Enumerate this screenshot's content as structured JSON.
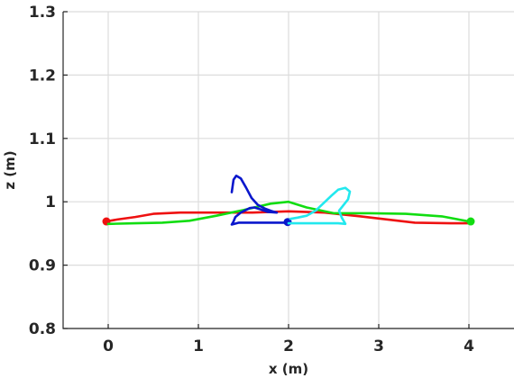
{
  "chart_data": {
    "type": "line",
    "title": "",
    "xlabel": "x (m)",
    "ylabel": "z (m)",
    "xlim": [
      -0.5,
      4.5
    ],
    "ylim": [
      0.8,
      1.3
    ],
    "xticks": [
      0,
      1,
      2,
      3,
      4
    ],
    "xtick_labels": [
      "0",
      "1",
      "2",
      "3",
      "4"
    ],
    "yticks": [
      0.8,
      0.9,
      1.0,
      1.1,
      1.2,
      1.3
    ],
    "ytick_labels": [
      "0.8",
      "0.9",
      "1",
      "1.1",
      "1.2",
      "1.3"
    ],
    "grid": true,
    "series": [
      {
        "color": "#ee1111",
        "marker_at_start": true,
        "points": [
          [
            -0.02,
            0.969
          ],
          [
            0.1,
            0.972
          ],
          [
            0.3,
            0.976
          ],
          [
            0.5,
            0.981
          ],
          [
            0.8,
            0.983
          ],
          [
            1.2,
            0.983
          ],
          [
            1.6,
            0.983
          ],
          [
            2.0,
            0.985
          ],
          [
            2.4,
            0.983
          ],
          [
            2.8,
            0.977
          ],
          [
            3.1,
            0.972
          ],
          [
            3.4,
            0.967
          ],
          [
            3.8,
            0.966
          ],
          [
            4.0,
            0.966
          ]
        ]
      },
      {
        "color": "#11dd11",
        "marker_at_end": true,
        "points": [
          [
            0.0,
            0.965
          ],
          [
            0.3,
            0.966
          ],
          [
            0.6,
            0.967
          ],
          [
            0.9,
            0.97
          ],
          [
            1.2,
            0.978
          ],
          [
            1.5,
            0.987
          ],
          [
            1.8,
            0.997
          ],
          [
            2.0,
            1.0
          ],
          [
            2.2,
            0.991
          ],
          [
            2.5,
            0.982
          ],
          [
            2.9,
            0.982
          ],
          [
            3.3,
            0.981
          ],
          [
            3.7,
            0.977
          ],
          [
            4.0,
            0.969
          ],
          [
            4.02,
            0.969
          ]
        ]
      },
      {
        "color": "#0a17cc",
        "marker_at_end": true,
        "points": [
          [
            1.37,
            1.015
          ],
          [
            1.39,
            1.035
          ],
          [
            1.42,
            1.041
          ],
          [
            1.47,
            1.037
          ],
          [
            1.53,
            1.022
          ],
          [
            1.59,
            1.006
          ],
          [
            1.66,
            0.995
          ],
          [
            1.74,
            0.989
          ],
          [
            1.82,
            0.985
          ],
          [
            1.87,
            0.983
          ],
          [
            1.77,
            0.984
          ],
          [
            1.69,
            0.988
          ],
          [
            1.62,
            0.991
          ],
          [
            1.57,
            0.99
          ],
          [
            1.47,
            0.983
          ],
          [
            1.41,
            0.976
          ],
          [
            1.39,
            0.969
          ],
          [
            1.37,
            0.964
          ],
          [
            1.45,
            0.967
          ],
          [
            1.62,
            0.967
          ],
          [
            1.82,
            0.967
          ],
          [
            1.95,
            0.967
          ],
          [
            1.99,
            0.968
          ]
        ]
      },
      {
        "color": "#22e8ee",
        "points": [
          [
            2.0,
            0.966
          ],
          [
            2.15,
            0.966
          ],
          [
            2.35,
            0.966
          ],
          [
            2.55,
            0.966
          ],
          [
            2.63,
            0.965
          ],
          [
            2.59,
            0.975
          ],
          [
            2.56,
            0.986
          ],
          [
            2.6,
            0.993
          ],
          [
            2.66,
            1.004
          ],
          [
            2.68,
            1.016
          ],
          [
            2.63,
            1.022
          ],
          [
            2.55,
            1.019
          ],
          [
            2.47,
            1.009
          ],
          [
            2.39,
            0.998
          ],
          [
            2.3,
            0.986
          ],
          [
            2.2,
            0.978
          ],
          [
            2.1,
            0.975
          ],
          [
            2.02,
            0.973
          ]
        ]
      }
    ]
  }
}
